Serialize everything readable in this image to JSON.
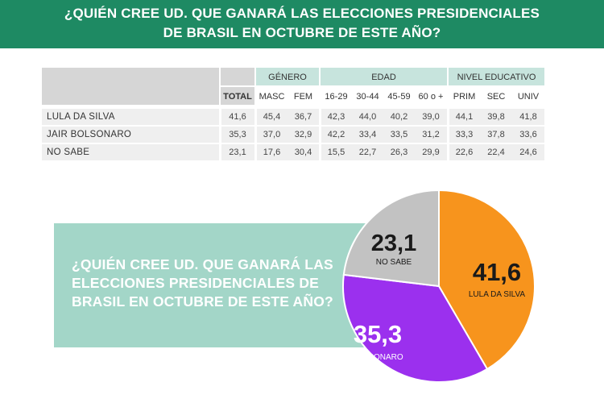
{
  "header": {
    "title_line1": "¿QUIÉN CREE UD. QUE GANARÁ LAS ELECCIONES PRESIDENCIALES",
    "title_line2": "DE BRASIL EN OCTUBRE DE ESTE AÑO?"
  },
  "table": {
    "groups": [
      "GÉNERO",
      "EDAD",
      "NIVEL EDUCATIVO"
    ],
    "columns": [
      "TOTAL",
      "MASC",
      "FEM",
      "16-29",
      "30-44",
      "45-59",
      "60 o +",
      "PRIM",
      "SEC",
      "UNIV"
    ],
    "rows": [
      {
        "label": "LULA DA SILVA",
        "values": [
          "41,6",
          "45,4",
          "36,7",
          "42,3",
          "44,0",
          "40,2",
          "39,0",
          "44,1",
          "39,8",
          "41,8"
        ]
      },
      {
        "label": "JAIR BOLSONARO",
        "values": [
          "35,3",
          "37,0",
          "32,9",
          "42,2",
          "33,4",
          "33,5",
          "31,2",
          "33,3",
          "37,8",
          "33,6"
        ]
      },
      {
        "label": "NO SABE",
        "values": [
          "23,1",
          "17,6",
          "30,4",
          "15,5",
          "22,7",
          "26,3",
          "29,9",
          "22,6",
          "22,4",
          "24,6"
        ]
      }
    ]
  },
  "panel": {
    "line1": "¿QUIÉN CREE UD. QUE GANARÁ LAS",
    "line2": "ELECCIONES PRESIDENCIALES DE",
    "line3": "BRASIL EN OCTUBRE DE ESTE AÑO?"
  },
  "chart_data": {
    "type": "pie",
    "slices": [
      {
        "name": "LULA DA SILVA",
        "value": 41.6,
        "display": "41,6",
        "color": "#f7941d"
      },
      {
        "name": "BOLSONARO",
        "value": 35.3,
        "display": "35,3",
        "color": "#9b30ee"
      },
      {
        "name": "NO SABE",
        "value": 23.1,
        "display": "23,1",
        "color": "#c2c2c2"
      }
    ]
  }
}
